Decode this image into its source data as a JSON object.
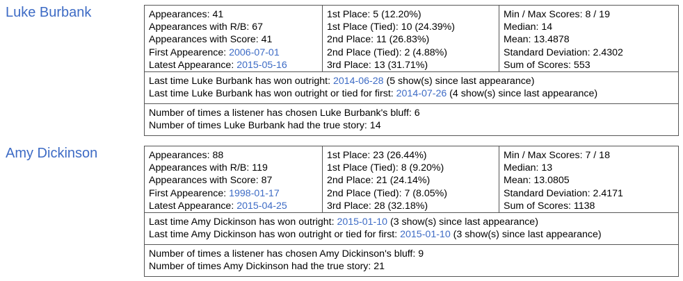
{
  "panelists": [
    {
      "name": "Luke Burbank",
      "col1": {
        "appearances_label": "Appearances: ",
        "appearances": "41",
        "rb_label": "Appearances with R/B: ",
        "rb": "67",
        "score_label": "Appearances with Score: ",
        "score": "41",
        "first_label": "First Appearence: ",
        "first": "2006-07-01",
        "latest_label": "Latest Appearance: ",
        "latest": "2015-05-16"
      },
      "col2": {
        "first_place": "1st Place: 5 (12.20%)",
        "first_tied": "1st Place (Tied): 10 (24.39%)",
        "second_place": "2nd Place: 11 (26.83%)",
        "second_tied": "2nd Place (Tied): 2 (4.88%)",
        "third_place": "3rd Place: 13 (31.71%)"
      },
      "col3": {
        "minmax": "Min / Max Scores: 8 / 19",
        "median": "Median: 14",
        "mean": "Mean: 13.4878",
        "stddev": "Standard Deviation: 2.4302",
        "sum": "Sum of Scores: 553"
      },
      "outright": {
        "prefix": "Last time Luke Burbank has won outright: ",
        "date": "2014-06-28",
        "suffix": " (5 show(s) since last appearance)"
      },
      "tied": {
        "prefix": "Last time Luke Burbank has won outright or tied for first: ",
        "date": "2014-07-26",
        "suffix": " (4 show(s) since last appearance)"
      },
      "bluff": "Number of times a listener has chosen Luke Burbank's bluff: 6",
      "true_story": "Number of times Luke Burbank had the true story: 14"
    },
    {
      "name": "Amy Dickinson",
      "col1": {
        "appearances_label": "Appearances: ",
        "appearances": "88",
        "rb_label": "Appearances with R/B: ",
        "rb": "119",
        "score_label": "Appearances with Score: ",
        "score": "87",
        "first_label": "First Appearence: ",
        "first": "1998-01-17",
        "latest_label": "Latest Appearance: ",
        "latest": "2015-04-25"
      },
      "col2": {
        "first_place": "1st Place: 23 (26.44%)",
        "first_tied": "1st Place (Tied): 8 (9.20%)",
        "second_place": "2nd Place: 21 (24.14%)",
        "second_tied": "2nd Place (Tied): 7 (8.05%)",
        "third_place": "3rd Place: 28 (32.18%)"
      },
      "col3": {
        "minmax": "Min / Max Scores: 7 / 18",
        "median": "Median: 13",
        "mean": "Mean: 13.0805",
        "stddev": "Standard Deviation: 2.4171",
        "sum": "Sum of Scores: 1138"
      },
      "outright": {
        "prefix": "Last time Amy Dickinson has won outright: ",
        "date": "2015-01-10",
        "suffix": " (3 show(s) since last appearance)"
      },
      "tied": {
        "prefix": "Last time Amy Dickinson has won outright or tied for first: ",
        "date": "2015-01-10",
        "suffix": " (3 show(s) since last appearance)"
      },
      "bluff": "Number of times a listener has chosen Amy Dickinson's bluff: 9",
      "true_story": "Number of times Amy Dickinson had the true story: 21"
    }
  ],
  "colors": {
    "link": "#3d6bc5",
    "border": "#555555"
  }
}
